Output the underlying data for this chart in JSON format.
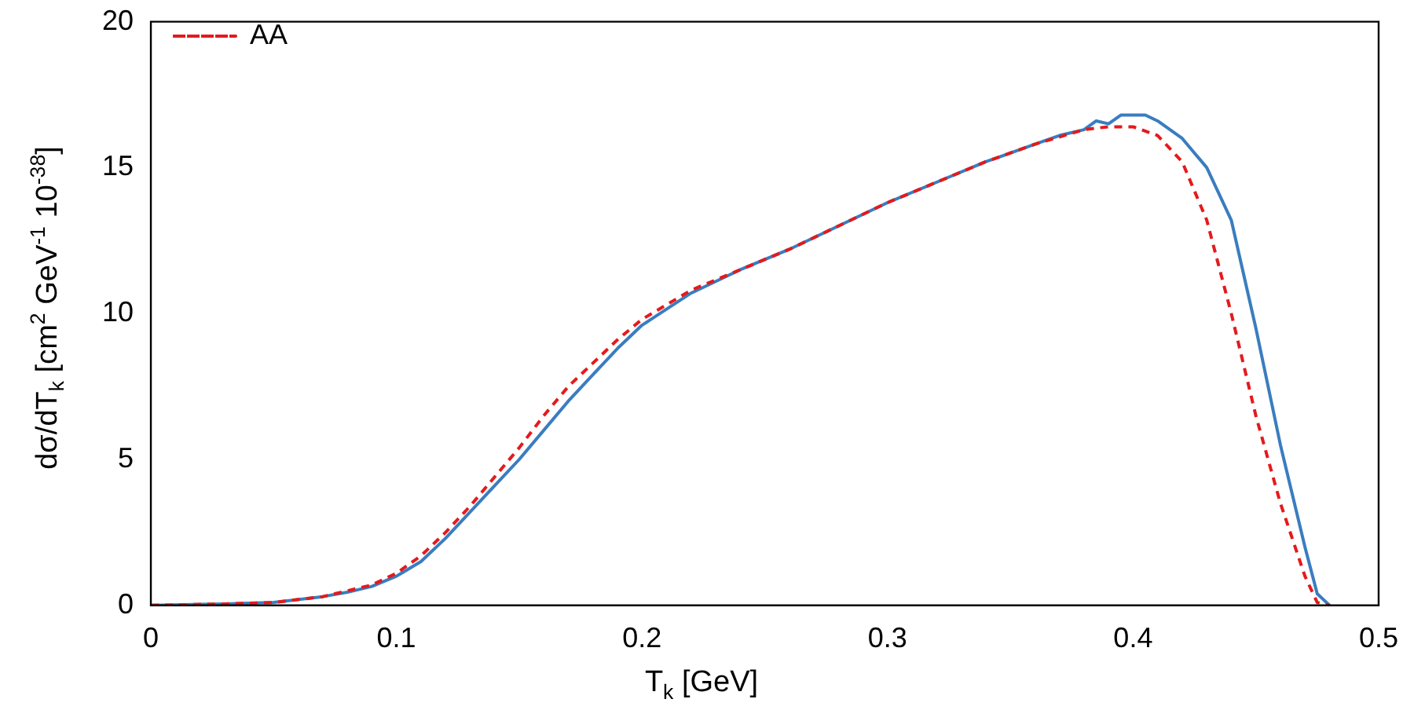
{
  "chart_data": {
    "type": "line",
    "xlabel": "T$_{k}$ [GeV]",
    "ylabel": "dσ/dT$_{k}$ [cm$^{2}$ GeV$^{-1}$ 10$^{-38}$]",
    "xlim": [
      0,
      0.5
    ],
    "xticks": [
      0,
      0.1,
      0.2,
      0.3,
      0.4,
      0.5
    ],
    "ylim": [
      0,
      20
    ],
    "yticks": [
      0,
      5,
      10,
      15,
      20
    ],
    "grid": false,
    "legend": "top left",
    "marker": "none",
    "series": [
      {
        "name": "AA",
        "color": "#e41a1c",
        "line_style": "dashed",
        "x": [
          0,
          0.03,
          0.05,
          0.07,
          0.08,
          0.09,
          0.1,
          0.11,
          0.12,
          0.13,
          0.14,
          0.15,
          0.16,
          0.17,
          0.18,
          0.19,
          0.2,
          0.22,
          0.24,
          0.26,
          0.28,
          0.3,
          0.32,
          0.34,
          0.36,
          0.38,
          0.39,
          0.4,
          0.41,
          0.42,
          0.43,
          0.44,
          0.45,
          0.46,
          0.47,
          0.475,
          0.48
        ],
        "values": [
          0,
          0.05,
          0.1,
          0.3,
          0.5,
          0.7,
          1.1,
          1.7,
          2.5,
          3.4,
          4.4,
          5.4,
          6.5,
          7.5,
          8.3,
          9.1,
          9.8,
          10.8,
          11.5,
          12.2,
          13.0,
          13.8,
          14.5,
          15.2,
          15.8,
          16.3,
          16.4,
          16.4,
          16.1,
          15.2,
          13.2,
          10.0,
          6.5,
          3.5,
          1.0,
          0.1,
          0
        ]
      },
      {
        "color": "#3a7dbf",
        "line_style": "solid",
        "x": [
          0,
          0.03,
          0.05,
          0.07,
          0.08,
          0.09,
          0.1,
          0.11,
          0.12,
          0.13,
          0.14,
          0.15,
          0.16,
          0.17,
          0.18,
          0.19,
          0.2,
          0.22,
          0.24,
          0.26,
          0.28,
          0.3,
          0.32,
          0.34,
          0.36,
          0.37,
          0.38,
          0.385,
          0.39,
          0.395,
          0.4,
          0.405,
          0.41,
          0.42,
          0.43,
          0.44,
          0.45,
          0.46,
          0.47,
          0.475,
          0.48
        ],
        "values": [
          0,
          0.05,
          0.1,
          0.3,
          0.45,
          0.65,
          1.0,
          1.5,
          2.3,
          3.2,
          4.1,
          5.0,
          6.0,
          7.0,
          7.9,
          8.8,
          9.6,
          10.7,
          11.5,
          12.2,
          13.0,
          13.8,
          14.5,
          15.2,
          15.8,
          16.1,
          16.3,
          16.6,
          16.5,
          16.8,
          16.8,
          16.8,
          16.6,
          16.0,
          15.0,
          13.2,
          9.5,
          5.5,
          2.0,
          0.4,
          0
        ]
      }
    ]
  }
}
